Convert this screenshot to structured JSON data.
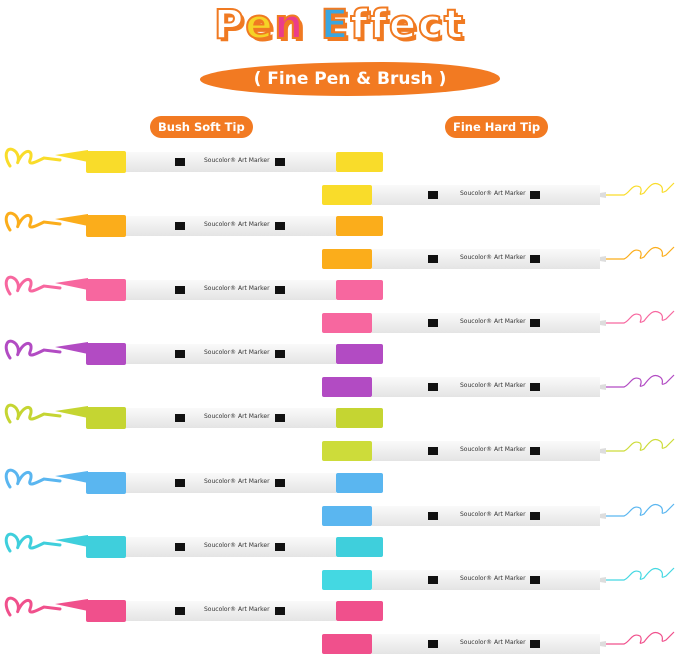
{
  "header": {
    "title_parts": [
      "P",
      "e",
      "n",
      " ",
      "E",
      "ffect"
    ],
    "subtitle": "( Fine Pen & Brush )"
  },
  "labels": {
    "left": "Bush Soft Tip",
    "right": "Fine Hard Tip"
  },
  "pen_label": "Soucolor® Art Marker",
  "colors": {
    "accent": "#f27a22"
  },
  "brush_pens": [
    "#f9dc2a",
    "#fbad1b",
    "#f7679f",
    "#b24bc3",
    "#c5d532",
    "#5ab6f0",
    "#3fcfdc",
    "#f0508c"
  ],
  "fine_pens": [
    "#f9dc2a",
    "#fbad1b",
    "#f7679f",
    "#b24bc3",
    "#cddc3a",
    "#5ab6f0",
    "#44d8e2",
    "#f0508c"
  ]
}
